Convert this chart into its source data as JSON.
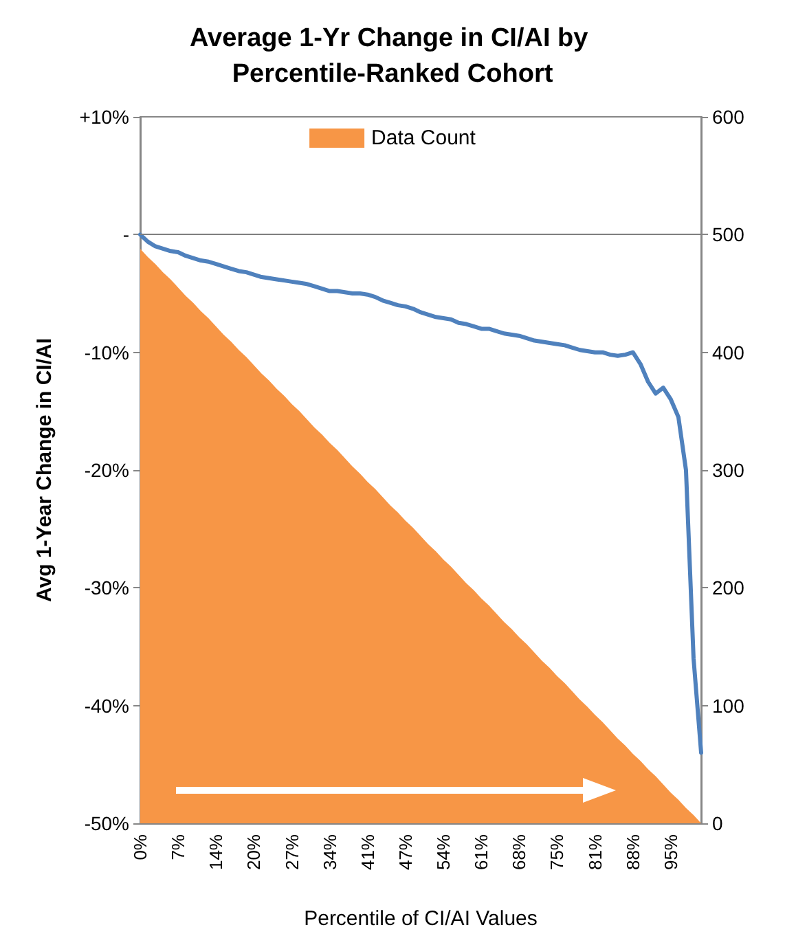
{
  "chart_data": {
    "type": "area",
    "title": "Average 1-Yr Change in CI/AI by Percentile-Ranked Cohort",
    "xlabel": "Percentile of CI/AI Values",
    "ylabel": "Avg 1-Year Change in CI/AI",
    "categories": [
      "0%",
      null,
      null,
      null,
      null,
      "7%",
      null,
      null,
      null,
      null,
      "14%",
      null,
      null,
      null,
      null,
      "20%",
      null,
      null,
      null,
      null,
      "27%",
      null,
      null,
      null,
      null,
      "34%",
      null,
      null,
      null,
      null,
      "41%",
      null,
      null,
      null,
      null,
      "47%",
      null,
      null,
      null,
      null,
      "54%",
      null,
      null,
      null,
      null,
      "61%",
      null,
      null,
      null,
      null,
      "68%",
      null,
      null,
      null,
      null,
      "75%",
      null,
      null,
      null,
      null,
      "81%",
      null,
      null,
      null,
      null,
      "88%",
      null,
      null,
      null,
      null,
      "95%",
      null,
      null,
      null,
      null
    ],
    "series": [
      {
        "name": "Data Count",
        "axis": "y2",
        "color": "#f79646",
        "values": [
          488,
          481,
          475,
          468,
          462,
          455,
          448,
          442,
          435,
          429,
          422,
          415,
          409,
          402,
          396,
          389,
          382,
          376,
          369,
          363,
          356,
          350,
          343,
          336,
          330,
          323,
          317,
          310,
          303,
          297,
          290,
          284,
          277,
          270,
          264,
          257,
          251,
          244,
          237,
          231,
          224,
          218,
          211,
          204,
          198,
          191,
          185,
          178,
          171,
          165,
          158,
          152,
          145,
          138,
          132,
          125,
          119,
          112,
          105,
          99,
          92,
          86,
          79,
          72,
          66,
          59,
          53,
          46,
          40,
          33,
          26,
          20,
          13,
          7,
          0
        ]
      },
      {
        "type": "line",
        "axis": "y",
        "color": "#4f81bd",
        "values": [
          0,
          -0.6,
          -1,
          -1.2,
          -1.4,
          -1.5,
          -1.8,
          -2,
          -2.2,
          -2.3,
          -2.5,
          -2.7,
          -2.9,
          -3.1,
          -3.2,
          -3.4,
          -3.6,
          -3.7,
          -3.8,
          -3.9,
          -4,
          -4.1,
          -4.2,
          -4.4,
          -4.6,
          -4.8,
          -4.8,
          -4.9,
          -5,
          -5,
          -5.1,
          -5.3,
          -5.6,
          -5.8,
          -6,
          -6.1,
          -6.3,
          -6.6,
          -6.8,
          -7,
          -7.1,
          -7.2,
          -7.5,
          -7.6,
          -7.8,
          -8,
          -8,
          -8.2,
          -8.4,
          -8.5,
          -8.6,
          -8.8,
          -9,
          -9.1,
          -9.2,
          -9.3,
          -9.4,
          -9.6,
          -9.8,
          -9.9,
          -10,
          -10,
          -10.2,
          -10.3,
          -10.2,
          -10,
          -11,
          -12.5,
          -13.5,
          -13,
          -14,
          -15.5,
          -20,
          -36,
          -44
        ]
      }
    ],
    "ylim": [
      -50,
      10
    ],
    "yticks": [
      {
        "value": 10,
        "label": "+10%"
      },
      {
        "value": 0,
        "label": "-"
      },
      {
        "value": -10,
        "label": "-10%"
      },
      {
        "value": -20,
        "label": "-20%"
      },
      {
        "value": -30,
        "label": "-30%"
      },
      {
        "value": -40,
        "label": "-40%"
      },
      {
        "value": -50,
        "label": "-50%"
      }
    ],
    "y2lim": [
      0,
      600
    ],
    "y2ticks": [
      0,
      100,
      200,
      300,
      400,
      500,
      600
    ],
    "ref_lines": [
      {
        "axis": "y",
        "value": 0,
        "color": "#7f7f7f"
      }
    ],
    "legend": "top",
    "marker": "none",
    "line_style": "solid",
    "grid": false
  }
}
